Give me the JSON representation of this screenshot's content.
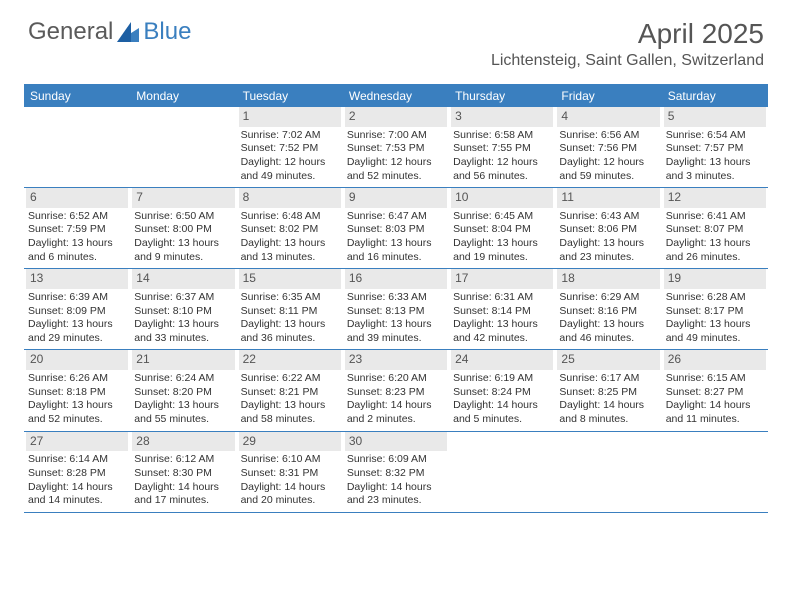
{
  "brand": {
    "part1": "General",
    "part2": "Blue"
  },
  "title": "April 2025",
  "location": "Lichtensteig, Saint Gallen, Switzerland",
  "colors": {
    "header_bg": "#3a7fbf",
    "header_text": "#ffffff",
    "daynum_bg": "#e9e9e9",
    "text": "#333333",
    "rule": "#3a7fbf"
  },
  "day_names": [
    "Sunday",
    "Monday",
    "Tuesday",
    "Wednesday",
    "Thursday",
    "Friday",
    "Saturday"
  ],
  "weeks": [
    [
      {
        "n": "",
        "sr": "",
        "ss": "",
        "dl": ""
      },
      {
        "n": "",
        "sr": "",
        "ss": "",
        "dl": ""
      },
      {
        "n": "1",
        "sr": "Sunrise: 7:02 AM",
        "ss": "Sunset: 7:52 PM",
        "dl": "Daylight: 12 hours and 49 minutes."
      },
      {
        "n": "2",
        "sr": "Sunrise: 7:00 AM",
        "ss": "Sunset: 7:53 PM",
        "dl": "Daylight: 12 hours and 52 minutes."
      },
      {
        "n": "3",
        "sr": "Sunrise: 6:58 AM",
        "ss": "Sunset: 7:55 PM",
        "dl": "Daylight: 12 hours and 56 minutes."
      },
      {
        "n": "4",
        "sr": "Sunrise: 6:56 AM",
        "ss": "Sunset: 7:56 PM",
        "dl": "Daylight: 12 hours and 59 minutes."
      },
      {
        "n": "5",
        "sr": "Sunrise: 6:54 AM",
        "ss": "Sunset: 7:57 PM",
        "dl": "Daylight: 13 hours and 3 minutes."
      }
    ],
    [
      {
        "n": "6",
        "sr": "Sunrise: 6:52 AM",
        "ss": "Sunset: 7:59 PM",
        "dl": "Daylight: 13 hours and 6 minutes."
      },
      {
        "n": "7",
        "sr": "Sunrise: 6:50 AM",
        "ss": "Sunset: 8:00 PM",
        "dl": "Daylight: 13 hours and 9 minutes."
      },
      {
        "n": "8",
        "sr": "Sunrise: 6:48 AM",
        "ss": "Sunset: 8:02 PM",
        "dl": "Daylight: 13 hours and 13 minutes."
      },
      {
        "n": "9",
        "sr": "Sunrise: 6:47 AM",
        "ss": "Sunset: 8:03 PM",
        "dl": "Daylight: 13 hours and 16 minutes."
      },
      {
        "n": "10",
        "sr": "Sunrise: 6:45 AM",
        "ss": "Sunset: 8:04 PM",
        "dl": "Daylight: 13 hours and 19 minutes."
      },
      {
        "n": "11",
        "sr": "Sunrise: 6:43 AM",
        "ss": "Sunset: 8:06 PM",
        "dl": "Daylight: 13 hours and 23 minutes."
      },
      {
        "n": "12",
        "sr": "Sunrise: 6:41 AM",
        "ss": "Sunset: 8:07 PM",
        "dl": "Daylight: 13 hours and 26 minutes."
      }
    ],
    [
      {
        "n": "13",
        "sr": "Sunrise: 6:39 AM",
        "ss": "Sunset: 8:09 PM",
        "dl": "Daylight: 13 hours and 29 minutes."
      },
      {
        "n": "14",
        "sr": "Sunrise: 6:37 AM",
        "ss": "Sunset: 8:10 PM",
        "dl": "Daylight: 13 hours and 33 minutes."
      },
      {
        "n": "15",
        "sr": "Sunrise: 6:35 AM",
        "ss": "Sunset: 8:11 PM",
        "dl": "Daylight: 13 hours and 36 minutes."
      },
      {
        "n": "16",
        "sr": "Sunrise: 6:33 AM",
        "ss": "Sunset: 8:13 PM",
        "dl": "Daylight: 13 hours and 39 minutes."
      },
      {
        "n": "17",
        "sr": "Sunrise: 6:31 AM",
        "ss": "Sunset: 8:14 PM",
        "dl": "Daylight: 13 hours and 42 minutes."
      },
      {
        "n": "18",
        "sr": "Sunrise: 6:29 AM",
        "ss": "Sunset: 8:16 PM",
        "dl": "Daylight: 13 hours and 46 minutes."
      },
      {
        "n": "19",
        "sr": "Sunrise: 6:28 AM",
        "ss": "Sunset: 8:17 PM",
        "dl": "Daylight: 13 hours and 49 minutes."
      }
    ],
    [
      {
        "n": "20",
        "sr": "Sunrise: 6:26 AM",
        "ss": "Sunset: 8:18 PM",
        "dl": "Daylight: 13 hours and 52 minutes."
      },
      {
        "n": "21",
        "sr": "Sunrise: 6:24 AM",
        "ss": "Sunset: 8:20 PM",
        "dl": "Daylight: 13 hours and 55 minutes."
      },
      {
        "n": "22",
        "sr": "Sunrise: 6:22 AM",
        "ss": "Sunset: 8:21 PM",
        "dl": "Daylight: 13 hours and 58 minutes."
      },
      {
        "n": "23",
        "sr": "Sunrise: 6:20 AM",
        "ss": "Sunset: 8:23 PM",
        "dl": "Daylight: 14 hours and 2 minutes."
      },
      {
        "n": "24",
        "sr": "Sunrise: 6:19 AM",
        "ss": "Sunset: 8:24 PM",
        "dl": "Daylight: 14 hours and 5 minutes."
      },
      {
        "n": "25",
        "sr": "Sunrise: 6:17 AM",
        "ss": "Sunset: 8:25 PM",
        "dl": "Daylight: 14 hours and 8 minutes."
      },
      {
        "n": "26",
        "sr": "Sunrise: 6:15 AM",
        "ss": "Sunset: 8:27 PM",
        "dl": "Daylight: 14 hours and 11 minutes."
      }
    ],
    [
      {
        "n": "27",
        "sr": "Sunrise: 6:14 AM",
        "ss": "Sunset: 8:28 PM",
        "dl": "Daylight: 14 hours and 14 minutes."
      },
      {
        "n": "28",
        "sr": "Sunrise: 6:12 AM",
        "ss": "Sunset: 8:30 PM",
        "dl": "Daylight: 14 hours and 17 minutes."
      },
      {
        "n": "29",
        "sr": "Sunrise: 6:10 AM",
        "ss": "Sunset: 8:31 PM",
        "dl": "Daylight: 14 hours and 20 minutes."
      },
      {
        "n": "30",
        "sr": "Sunrise: 6:09 AM",
        "ss": "Sunset: 8:32 PM",
        "dl": "Daylight: 14 hours and 23 minutes."
      },
      {
        "n": "",
        "sr": "",
        "ss": "",
        "dl": ""
      },
      {
        "n": "",
        "sr": "",
        "ss": "",
        "dl": ""
      },
      {
        "n": "",
        "sr": "",
        "ss": "",
        "dl": ""
      }
    ]
  ]
}
